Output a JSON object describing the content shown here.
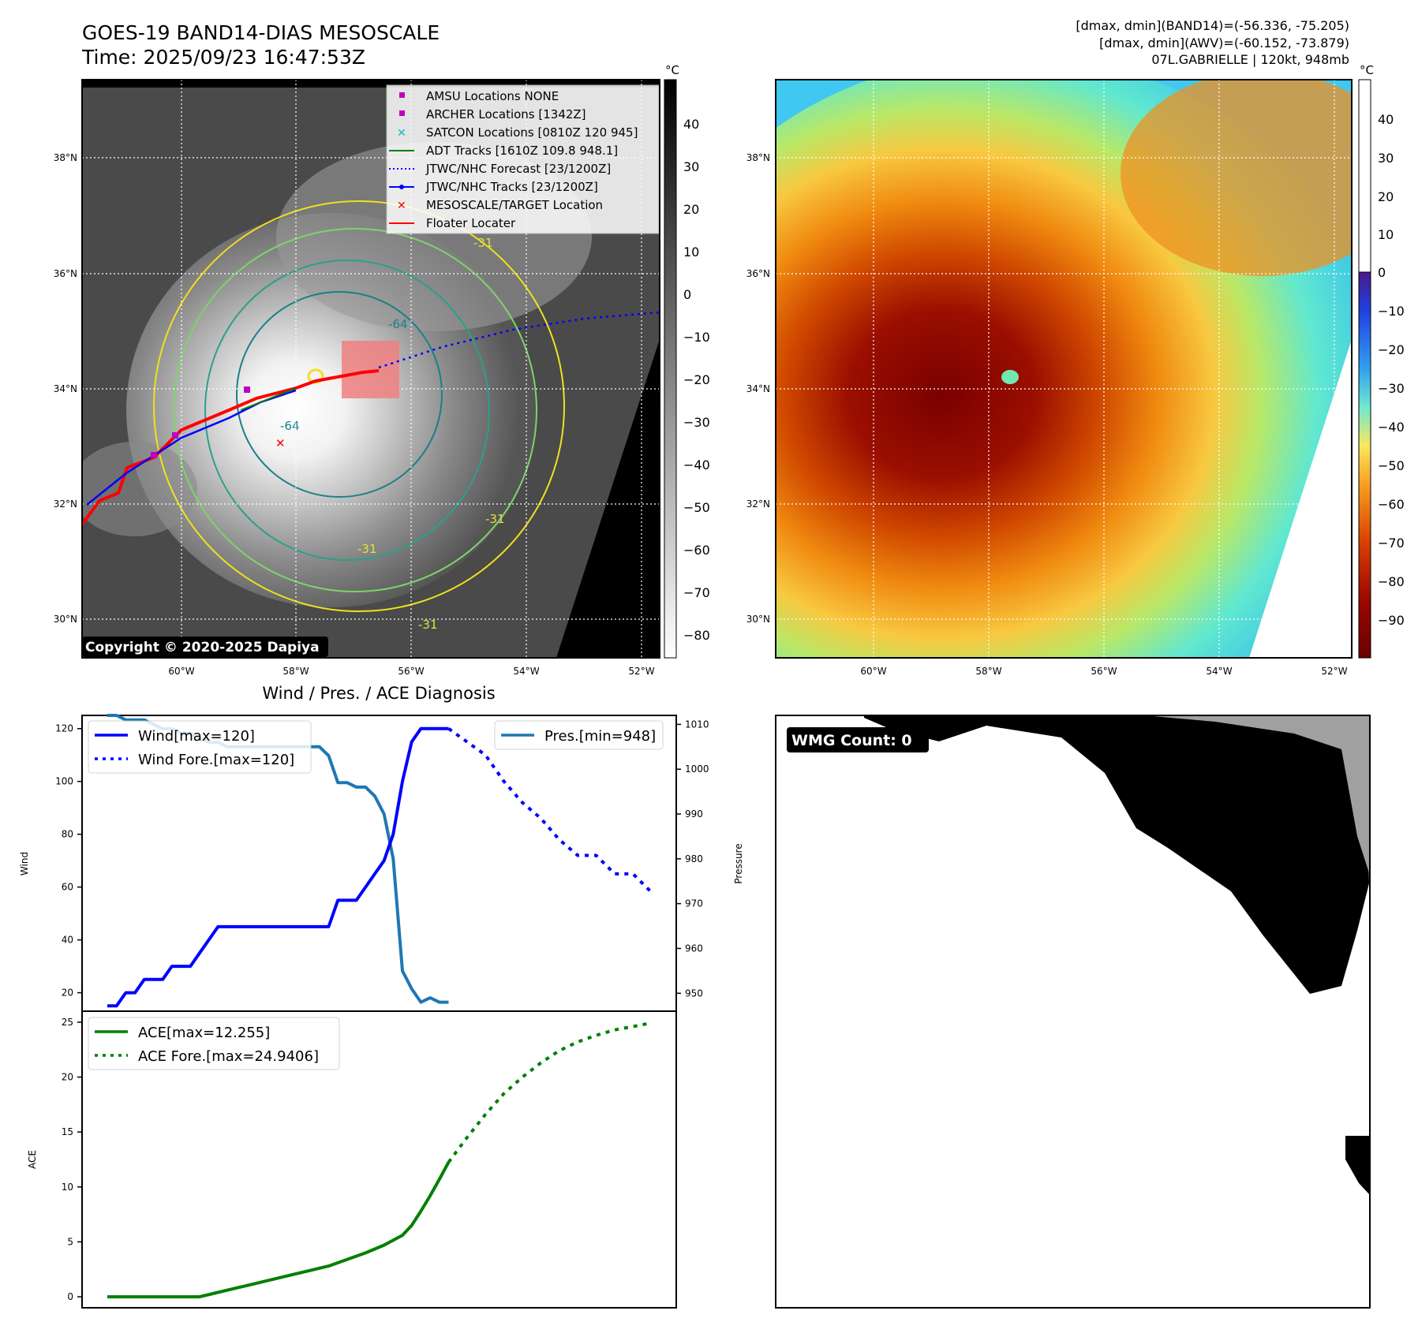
{
  "header": {
    "title": "GOES-19 BAND14-DIAS MESOSCALE",
    "time": "Time: 2025/09/23 16:47:53Z",
    "stats_band14": "[dmax, dmin](BAND14)=(-56.336, -75.205)",
    "stats_awv": "[dmax, dmin](AWV)=(-60.152, -73.879)",
    "storm": "07L.GABRIELLE | 120kt, 948mb"
  },
  "maps": {
    "lat_ticks": [
      "38°N",
      "36°N",
      "34°N",
      "32°N",
      "30°N"
    ],
    "lon_ticks": [
      "60°W",
      "58°W",
      "56°W",
      "54°W",
      "52°W"
    ],
    "copyright": "Copyright © 2020-2025 Dapiya",
    "contour_labels": [
      "-31",
      "-64",
      "-64",
      "-31",
      "-31",
      "-31"
    ],
    "left_colorbar": {
      "unit": "°C",
      "ticks": [
        "40",
        "30",
        "20",
        "10",
        "0",
        "−10",
        "−20",
        "−30",
        "−40",
        "−50",
        "−60",
        "−70",
        "−80"
      ]
    },
    "right_colorbar": {
      "unit": "°C",
      "ticks": [
        "40",
        "30",
        "20",
        "10",
        "0",
        "−10",
        "−20",
        "−30",
        "−40",
        "−50",
        "−60",
        "−70",
        "−80",
        "−90"
      ]
    },
    "legend": [
      {
        "label": "AMSU Locations NONE",
        "color": "#c000c0",
        "icon": "square-marker"
      },
      {
        "label": "ARCHER Locations [1342Z]",
        "color": "#c000c0",
        "icon": "square-marker"
      },
      {
        "label": "SATCON Locations [0810Z 120 945]",
        "color": "#00c0c0",
        "icon": "x-marker"
      },
      {
        "label": "ADT Tracks [1610Z 109.8 948.1]",
        "color": "#008000",
        "icon": "solid-line"
      },
      {
        "label": "JTWC/NHC Forecast [23/1200Z]",
        "color": "#0000ff",
        "icon": "dotted-line"
      },
      {
        "label": "JTWC/NHC Tracks [23/1200Z]",
        "color": "#0000ff",
        "icon": "line-dot"
      },
      {
        "label": "MESOSCALE/TARGET Location",
        "color": "#ff0000",
        "icon": "x-marker"
      },
      {
        "label": "Floater Locater",
        "color": "#ff0000",
        "icon": "solid-line"
      }
    ]
  },
  "diagnosis": {
    "title": "Wind / Pres. / ACE Diagnosis",
    "wind_ylabel": "Wind",
    "pres_ylabel": "Pressure",
    "ace_ylabel": "ACE",
    "wind_ticks": [
      "120",
      "100",
      "80",
      "60",
      "40",
      "20"
    ],
    "pres_ticks": [
      "1010",
      "1000",
      "990",
      "980",
      "970",
      "960",
      "950"
    ],
    "ace_ticks": [
      "25",
      "20",
      "15",
      "10",
      "5",
      "0"
    ],
    "legend_wind": "Wind[max=120]",
    "legend_wind_fore": "Wind Fore.[max=120]",
    "legend_pres": "Pres.[min=948]",
    "legend_ace": "ACE[max=12.255]",
    "legend_ace_fore": "ACE Fore.[max=24.9406]"
  },
  "wmg": {
    "label": "WMG Count: 0"
  },
  "chart_data": [
    {
      "type": "line",
      "name": "wind",
      "ylabel": "Wind",
      "ylim": [
        13,
        125
      ],
      "series": [
        {
          "name": "Wind[max=120]",
          "color": "#0000ff",
          "style": "solid",
          "x": [
            0,
            1,
            2,
            3,
            4,
            5,
            6,
            7,
            8,
            9,
            10,
            11,
            12,
            13,
            14,
            15,
            16,
            17,
            18,
            19,
            20,
            21,
            22,
            23,
            24,
            25,
            26,
            27,
            28,
            29,
            30,
            31,
            32,
            33,
            34,
            35,
            36,
            37
          ],
          "values": [
            15,
            15,
            20,
            20,
            25,
            25,
            25,
            30,
            30,
            30,
            35,
            40,
            45,
            45,
            45,
            45,
            45,
            45,
            45,
            45,
            45,
            45,
            45,
            45,
            45,
            55,
            55,
            55,
            60,
            65,
            70,
            80,
            100,
            115,
            120,
            120,
            120,
            120
          ]
        },
        {
          "name": "Wind Fore.[max=120]",
          "color": "#0000ff",
          "style": "dotted",
          "x": [
            37,
            39,
            41,
            43,
            45,
            47,
            49,
            51,
            53,
            55,
            57,
            59
          ],
          "values": [
            120,
            115,
            110,
            100,
            92,
            86,
            78,
            72,
            72,
            65,
            65,
            58
          ]
        }
      ]
    },
    {
      "type": "line",
      "name": "pressure",
      "ylabel": "Pressure",
      "ylim": [
        946,
        1012
      ],
      "series": [
        {
          "name": "Pres.[min=948]",
          "color": "#1f77b4",
          "style": "solid",
          "x": [
            0,
            1,
            2,
            3,
            4,
            5,
            6,
            7,
            8,
            9,
            10,
            11,
            12,
            13,
            14,
            15,
            16,
            17,
            18,
            19,
            20,
            21,
            22,
            23,
            24,
            25,
            26,
            27,
            28,
            29,
            30,
            31,
            32,
            33,
            34,
            35,
            36,
            37
          ],
          "values": [
            1012,
            1012,
            1011,
            1011,
            1011,
            1010,
            1009,
            1009,
            1008,
            1008,
            1007,
            1006,
            1006,
            1005,
            1005,
            1005,
            1005,
            1005,
            1005,
            1005,
            1005,
            1005,
            1005,
            1005,
            1003,
            997,
            997,
            996,
            996,
            994,
            990,
            980,
            955,
            951,
            948,
            949,
            948,
            948
          ]
        }
      ]
    },
    {
      "type": "line",
      "name": "ace",
      "ylabel": "ACE",
      "ylim": [
        -1,
        26
      ],
      "series": [
        {
          "name": "ACE[max=12.255]",
          "color": "#008000",
          "style": "solid",
          "x": [
            0,
            5,
            10,
            12,
            14,
            16,
            18,
            20,
            22,
            24,
            26,
            28,
            30,
            32,
            33,
            34,
            35,
            36,
            37
          ],
          "values": [
            0,
            0,
            0,
            0.4,
            0.8,
            1.2,
            1.6,
            2,
            2.4,
            2.8,
            3.4,
            4,
            4.7,
            5.6,
            6.5,
            7.8,
            9.2,
            10.7,
            12.255
          ]
        },
        {
          "name": "ACE Fore.[max=24.9406]",
          "color": "#008000",
          "style": "dotted",
          "x": [
            37,
            39,
            41,
            43,
            45,
            47,
            49,
            51,
            53,
            55,
            57,
            59
          ],
          "values": [
            12.255,
            14.5,
            16.6,
            18.5,
            20,
            21.3,
            22.4,
            23.2,
            23.8,
            24.3,
            24.6,
            24.94
          ]
        }
      ]
    }
  ]
}
